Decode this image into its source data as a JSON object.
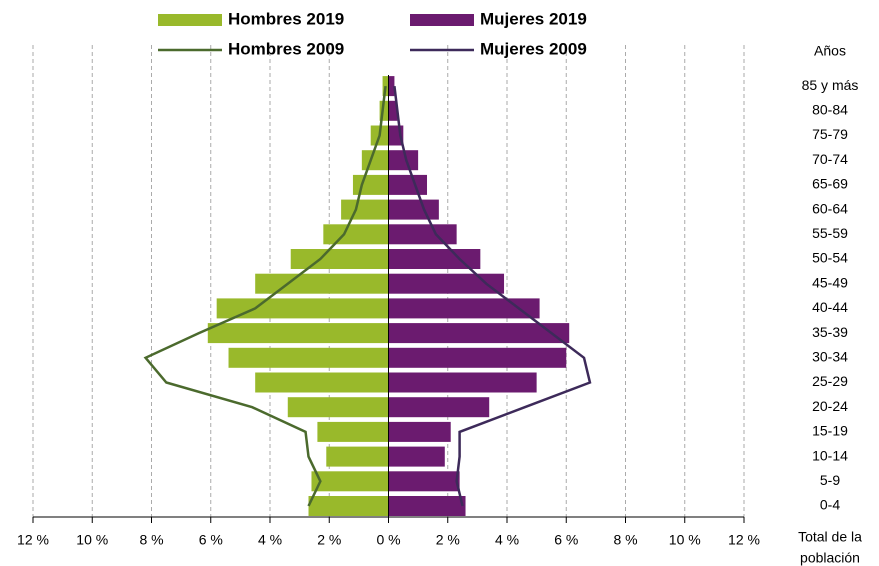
{
  "chart_data": {
    "type": "pyramid",
    "ylabel": "Años",
    "xlabel": [
      "Total de la",
      "población"
    ],
    "categories": [
      "0-4",
      "5-9",
      "10-14",
      "15-19",
      "20-24",
      "25-29",
      "30-34",
      "35-39",
      "40-44",
      "45-49",
      "50-54",
      "55-59",
      "60-64",
      "65-69",
      "70-74",
      "75-79",
      "80-84",
      "85 y más"
    ],
    "series": [
      {
        "name": "Hombres 2019",
        "type": "bar",
        "color": "#99b92b",
        "values": [
          -2.7,
          -2.6,
          -2.1,
          -2.4,
          -3.4,
          -4.5,
          -5.4,
          -6.1,
          -5.8,
          -4.5,
          -3.3,
          -2.2,
          -1.6,
          -1.2,
          -0.9,
          -0.6,
          -0.3,
          -0.2
        ]
      },
      {
        "name": "Mujeres 2019",
        "type": "bar",
        "color": "#6b1b6f",
        "values": [
          2.6,
          2.4,
          1.9,
          2.1,
          3.4,
          5.0,
          6.0,
          6.1,
          5.1,
          3.9,
          3.1,
          2.3,
          1.7,
          1.3,
          1.0,
          0.5,
          0.3,
          0.2
        ]
      },
      {
        "name": "Hombres 2009",
        "type": "line",
        "color": "#4b6a2d",
        "values": [
          -2.7,
          -2.3,
          -2.7,
          -2.8,
          -4.6,
          -7.5,
          -8.2,
          -6.4,
          -4.5,
          -3.4,
          -2.3,
          -1.5,
          -1.1,
          -0.9,
          -0.6,
          -0.3,
          -0.2,
          -0.1
        ]
      },
      {
        "name": "Mujeres 2009",
        "type": "line",
        "color": "#3d2a5a",
        "values": [
          2.5,
          2.3,
          2.4,
          2.4,
          4.6,
          6.8,
          6.6,
          5.5,
          4.4,
          3.3,
          2.4,
          1.6,
          1.2,
          0.9,
          0.6,
          0.4,
          0.3,
          0.2
        ]
      }
    ],
    "xlim": [
      -12,
      12
    ],
    "xticks": [
      {
        "value": -12,
        "label": "12 %"
      },
      {
        "value": -10,
        "label": "10 %"
      },
      {
        "value": -8,
        "label": "8 %"
      },
      {
        "value": -6,
        "label": "6 %"
      },
      {
        "value": -4,
        "label": "4 %"
      },
      {
        "value": -2,
        "label": "2 %"
      },
      {
        "value": 0,
        "label": "0 %"
      },
      {
        "value": 2,
        "label": "2 %"
      },
      {
        "value": 4,
        "label": "4 %"
      },
      {
        "value": 6,
        "label": "6 %"
      },
      {
        "value": 8,
        "label": "8 %"
      },
      {
        "value": 10,
        "label": "10 %"
      },
      {
        "value": 12,
        "label": "12 %"
      }
    ],
    "grid": true
  }
}
